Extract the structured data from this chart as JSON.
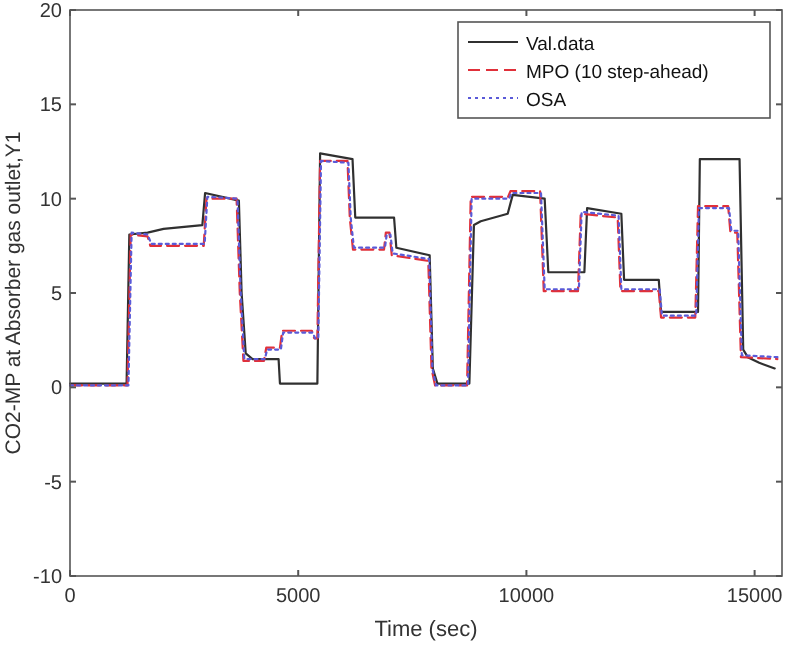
{
  "chart_data": {
    "type": "line",
    "xlabel": "Time (sec)",
    "ylabel": "CO2-MP at Absorber gas outlet,Y1",
    "xlim": [
      0,
      15600
    ],
    "xticks": [
      0,
      5000,
      10000,
      15000
    ],
    "ylim": [
      -10,
      20
    ],
    "yticks": [
      -10,
      -5,
      0,
      5,
      10,
      15,
      20
    ],
    "grid": false,
    "legend": "top right",
    "series": [
      {
        "name": "Val.data",
        "color": "#303030",
        "line_style": "solid",
        "x": [
          0,
          1240,
          1300,
          1700,
          2050,
          2900,
          2960,
          3700,
          3760,
          3850,
          4000,
          4570,
          4600,
          5420,
          5480,
          6190,
          6250,
          7100,
          7150,
          7880,
          7950,
          8050,
          8750,
          8850,
          9000,
          9590,
          9700,
          10400,
          10480,
          11270,
          11330,
          12080,
          12140,
          12900,
          12950,
          13760,
          13800,
          14670,
          14750,
          14850,
          15100,
          15440
        ],
        "values": [
          0.2,
          0.2,
          8.1,
          8.2,
          8.4,
          8.6,
          10.3,
          9.9,
          5,
          1.8,
          1.5,
          1.5,
          0.2,
          0.2,
          12.4,
          12.1,
          9,
          9,
          7.4,
          7,
          1,
          0.2,
          0.2,
          8.6,
          8.8,
          9.2,
          10.2,
          10,
          6.1,
          6.1,
          9.5,
          9.2,
          5.7,
          5.7,
          4,
          4,
          12.1,
          12.1,
          2,
          1.6,
          1.3,
          1
        ]
      },
      {
        "name": "MPO (10 step-ahead)",
        "color": "#e0303a",
        "line_style": "dashed",
        "x": [
          0,
          1260,
          1330,
          1700,
          1760,
          2930,
          2990,
          3650,
          3720,
          3800,
          4250,
          4300,
          4600,
          4650,
          5300,
          5350,
          5420,
          5480,
          6080,
          6130,
          6200,
          6880,
          6920,
          7000,
          7050,
          7850,
          7920,
          8000,
          8700,
          8780,
          9600,
          9650,
          10300,
          10380,
          11130,
          11190,
          12000,
          12060,
          12900,
          12950,
          13700,
          13760,
          14420,
          14470,
          14620,
          14700,
          15500
        ],
        "values": [
          0.1,
          0.1,
          8.1,
          8,
          7.5,
          7.5,
          10,
          10,
          5,
          1.4,
          1.4,
          2.1,
          2.1,
          3,
          3,
          2.6,
          2.6,
          12,
          12,
          9,
          7.3,
          7.3,
          8.2,
          8.2,
          7,
          6.7,
          1,
          0.1,
          0.1,
          10.1,
          10.1,
          10.4,
          10.4,
          5.1,
          5.1,
          9.2,
          9,
          5.1,
          5.1,
          3.7,
          3.7,
          9.6,
          9.6,
          8.2,
          8.2,
          1.6,
          1.5
        ]
      },
      {
        "name": "OSA",
        "color": "#5a5ad8",
        "line_style": "dotted",
        "x": [
          0,
          1280,
          1350,
          1700,
          1780,
          2950,
          3010,
          3670,
          3740,
          3820,
          4270,
          4320,
          4620,
          4670,
          5320,
          5370,
          5440,
          5500,
          6100,
          6150,
          6220,
          6900,
          6940,
          7020,
          7070,
          7870,
          7940,
          8020,
          8720,
          8800,
          9620,
          9670,
          10320,
          10400,
          11150,
          11210,
          12020,
          12080,
          12920,
          12970,
          13720,
          13780,
          14440,
          14490,
          14640,
          14720,
          15500
        ],
        "values": [
          0.1,
          0.1,
          8.2,
          8.1,
          7.6,
          7.6,
          10.1,
          10,
          5,
          1.5,
          1.5,
          2,
          2,
          2.9,
          2.9,
          2.6,
          2.6,
          12,
          11.9,
          9,
          7.4,
          7.4,
          8.1,
          8.1,
          7.1,
          6.8,
          1,
          0.1,
          0.1,
          10,
          10,
          10.3,
          10.3,
          5.2,
          5.2,
          9.3,
          9.1,
          5.2,
          5.2,
          3.8,
          3.8,
          9.5,
          9.5,
          8.3,
          8.3,
          1.7,
          1.6
        ]
      }
    ]
  }
}
